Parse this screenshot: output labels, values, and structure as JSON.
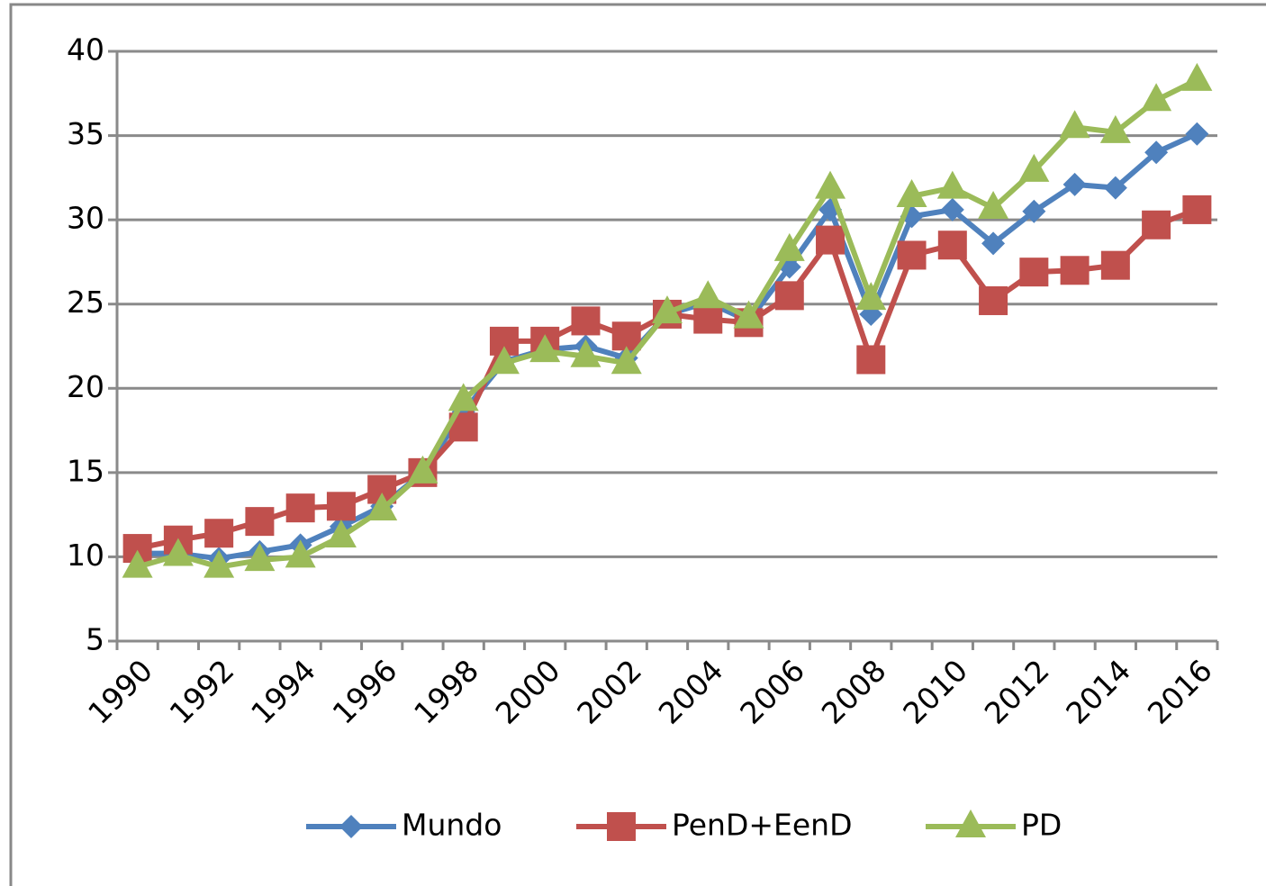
{
  "chart_data": {
    "type": "line",
    "categories": [
      "1990",
      null,
      "1992",
      null,
      "1994",
      null,
      "1996",
      null,
      "1998",
      null,
      "2000",
      null,
      "2002",
      null,
      "2004",
      null,
      "2006",
      null,
      "2008",
      null,
      "2010",
      null,
      "2012",
      null,
      "2014",
      null,
      "2016"
    ],
    "series": [
      {
        "name": "Mundo",
        "color": "#4f81bd",
        "marker": "diamond",
        "values": [
          10.2,
          10.2,
          9.9,
          10.3,
          10.7,
          11.8,
          13.0,
          15.0,
          18.6,
          21.6,
          22.3,
          22.5,
          21.8,
          24.4,
          25.1,
          24.0,
          27.2,
          30.6,
          24.4,
          30.2,
          30.6,
          28.6,
          30.5,
          32.1,
          31.9,
          34.0,
          35.1
        ]
      },
      {
        "name": "PenD+EenD",
        "color": "#c0504d",
        "marker": "square",
        "values": [
          10.5,
          11.0,
          11.4,
          12.1,
          12.9,
          13.0,
          14.0,
          15.0,
          17.7,
          22.8,
          22.8,
          24.0,
          23.1,
          24.4,
          24.1,
          23.9,
          25.5,
          28.8,
          21.7,
          27.9,
          28.5,
          25.2,
          26.9,
          27.0,
          27.3,
          29.7,
          30.6
        ]
      },
      {
        "name": "PD",
        "color": "#9bbb59",
        "marker": "triangle",
        "values": [
          9.4,
          10.1,
          9.4,
          9.8,
          10.0,
          11.2,
          12.8,
          15.0,
          19.3,
          21.5,
          22.2,
          21.9,
          21.5,
          24.5,
          25.4,
          24.2,
          28.2,
          31.9,
          25.3,
          31.4,
          31.9,
          30.7,
          32.9,
          35.5,
          35.2,
          37.1,
          38.3
        ]
      }
    ],
    "ylim": [
      5,
      40
    ],
    "yticks": [
      5,
      10,
      15,
      20,
      25,
      30,
      35,
      40
    ],
    "grid": true,
    "legend": "bottom"
  }
}
